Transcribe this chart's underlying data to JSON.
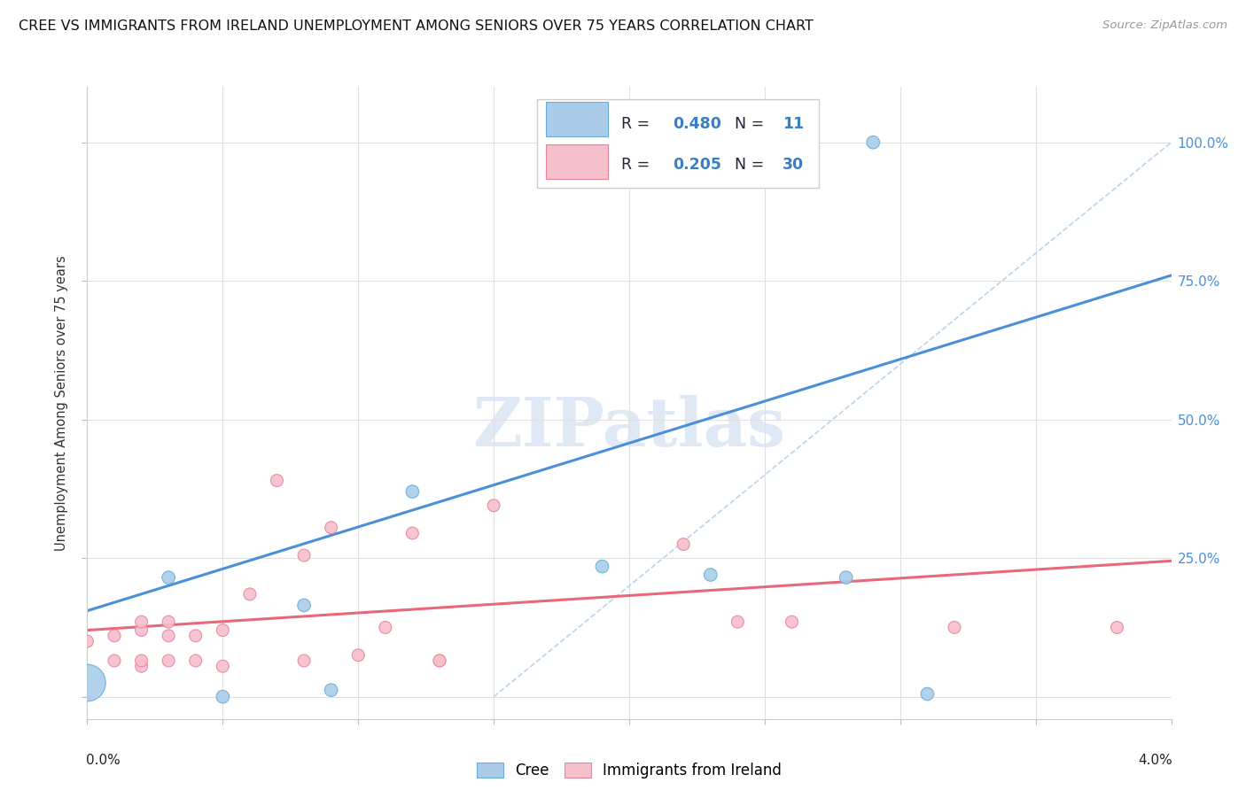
{
  "title": "CREE VS IMMIGRANTS FROM IRELAND UNEMPLOYMENT AMONG SENIORS OVER 75 YEARS CORRELATION CHART",
  "source": "Source: ZipAtlas.com",
  "ylabel": "Unemployment Among Seniors over 75 years",
  "right_yticks": [
    "100.0%",
    "75.0%",
    "50.0%",
    "25.0%"
  ],
  "right_ytick_vals": [
    1.0,
    0.75,
    0.5,
    0.25
  ],
  "xmin": 0.0,
  "xmax": 0.04,
  "ymin": -0.04,
  "ymax": 1.1,
  "watermark": "ZIPatlas",
  "blue_color": "#aacce8",
  "pink_color": "#f5bfcc",
  "blue_edge_color": "#6aaed6",
  "pink_edge_color": "#e8849a",
  "blue_line_color": "#4a90d9",
  "pink_line_color": "#e8687a",
  "diag_line_color": "#b8d4ee",
  "legend_r_color": "#3a7fc1",
  "legend_label_color": "#222244",
  "blue_scatter": [
    [
      0.0,
      0.025
    ],
    [
      0.003,
      0.215
    ],
    [
      0.005,
      0.0
    ],
    [
      0.008,
      0.165
    ],
    [
      0.009,
      0.012
    ],
    [
      0.012,
      0.37
    ],
    [
      0.019,
      0.235
    ],
    [
      0.023,
      0.22
    ],
    [
      0.028,
      0.215
    ],
    [
      0.029,
      1.0
    ],
    [
      0.031,
      0.005
    ]
  ],
  "pink_scatter": [
    [
      0.0,
      0.1
    ],
    [
      0.001,
      0.065
    ],
    [
      0.001,
      0.11
    ],
    [
      0.002,
      0.055
    ],
    [
      0.002,
      0.065
    ],
    [
      0.002,
      0.12
    ],
    [
      0.002,
      0.135
    ],
    [
      0.003,
      0.065
    ],
    [
      0.003,
      0.11
    ],
    [
      0.003,
      0.135
    ],
    [
      0.004,
      0.065
    ],
    [
      0.004,
      0.11
    ],
    [
      0.005,
      0.055
    ],
    [
      0.005,
      0.12
    ],
    [
      0.006,
      0.185
    ],
    [
      0.007,
      0.39
    ],
    [
      0.008,
      0.065
    ],
    [
      0.008,
      0.255
    ],
    [
      0.009,
      0.305
    ],
    [
      0.01,
      0.075
    ],
    [
      0.011,
      0.125
    ],
    [
      0.012,
      0.295
    ],
    [
      0.013,
      0.065
    ],
    [
      0.013,
      0.065
    ],
    [
      0.015,
      0.345
    ],
    [
      0.022,
      0.275
    ],
    [
      0.024,
      0.135
    ],
    [
      0.026,
      0.135
    ],
    [
      0.032,
      0.125
    ],
    [
      0.038,
      0.125
    ]
  ],
  "blue_line_x": [
    0.0,
    0.04
  ],
  "blue_line_y": [
    0.155,
    0.76
  ],
  "pink_line_x": [
    0.0,
    0.04
  ],
  "pink_line_y": [
    0.12,
    0.245
  ],
  "diag_line_x": [
    0.015,
    0.04
  ],
  "diag_line_y": [
    0.0,
    1.0
  ],
  "background_color": "#ffffff",
  "grid_color": "#e0e0e0",
  "xticks": [
    0.0,
    0.005,
    0.01,
    0.015,
    0.02,
    0.025,
    0.03,
    0.035,
    0.04
  ],
  "yticks": [
    0.0,
    0.25,
    0.5,
    0.75,
    1.0
  ]
}
